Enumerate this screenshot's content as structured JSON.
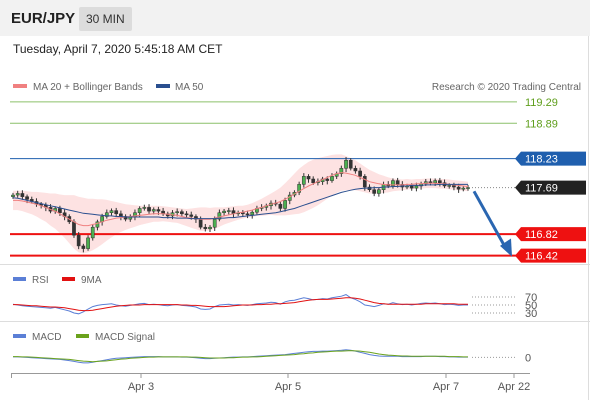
{
  "header": {
    "pair": "EUR/JPY",
    "timeframe": "30 MIN"
  },
  "datetime": "Tuesday, April 7, 2020 5:45:18 AM CET",
  "legend": {
    "ma20": "MA 20 + Bollinger Bands",
    "ma50": "MA 50",
    "credit": "Research © 2020 Trading Central",
    "rsi": "RSI",
    "rsi_ma": "9MA",
    "macd": "MACD",
    "macd_signal": "MACD Signal"
  },
  "colors": {
    "ma20": "#f08080",
    "ma50": "#2a4f8f",
    "bands_fill": "#fde2e2",
    "target_green": "#8cc06a",
    "resistance_blue": "#1f5fae",
    "support_red": "#ee1111",
    "arrow": "#2a66b1",
    "rsi": "#5b7fd6",
    "rsi_ma": "#e21111",
    "macd": "#5b7fd6",
    "macd_signal": "#6aa21c"
  },
  "chart_data": [
    {
      "type": "candlestick",
      "title": "EUR/JPY 30 MIN",
      "ylim": [
        116.3,
        119.4
      ],
      "x_ticks": [
        "Apr 3",
        "Apr 5",
        "Apr 7",
        "Apr 22"
      ],
      "levels": [
        {
          "value": 119.29,
          "label": "119.29",
          "kind": "target"
        },
        {
          "value": 118.89,
          "label": "118.89",
          "kind": "target"
        },
        {
          "value": 118.23,
          "label": "118.23",
          "kind": "resistance"
        },
        {
          "value": 117.69,
          "label": "117.69",
          "kind": "last"
        },
        {
          "value": 116.82,
          "label": "116.82",
          "kind": "support"
        },
        {
          "value": 116.42,
          "label": "116.42",
          "kind": "support"
        }
      ],
      "close": [
        117.55,
        117.58,
        117.52,
        117.47,
        117.43,
        117.38,
        117.36,
        117.32,
        117.25,
        117.3,
        117.22,
        117.15,
        117.05,
        116.8,
        116.6,
        116.55,
        116.75,
        116.95,
        117.05,
        117.15,
        117.22,
        117.26,
        117.2,
        117.15,
        117.1,
        117.14,
        117.22,
        117.3,
        117.32,
        117.25,
        117.28,
        117.25,
        117.2,
        117.16,
        117.22,
        117.24,
        117.2,
        117.18,
        117.15,
        117.1,
        116.95,
        116.92,
        116.95,
        117.1,
        117.22,
        117.25,
        117.26,
        117.2,
        117.22,
        117.2,
        117.18,
        117.23,
        117.3,
        117.32,
        117.35,
        117.4,
        117.38,
        117.3,
        117.45,
        117.55,
        117.6,
        117.75,
        117.9,
        117.85,
        117.78,
        117.8,
        117.85,
        117.82,
        117.9,
        117.95,
        118.05,
        118.2,
        118.05,
        118.0,
        117.9,
        117.7,
        117.65,
        117.58,
        117.65,
        117.75,
        117.72,
        117.82,
        117.75,
        117.7,
        117.72,
        117.68,
        117.72,
        117.76,
        117.8,
        117.78,
        117.82,
        117.78,
        117.72,
        117.73,
        117.7,
        117.66,
        117.68,
        117.69
      ],
      "ma20": [
        117.45,
        117.45,
        117.44,
        117.42,
        117.4,
        117.38,
        117.35,
        117.32,
        117.28,
        117.25,
        117.2,
        117.15,
        117.1,
        117.05,
        117.0,
        116.98,
        116.98,
        117.0,
        117.02,
        117.05,
        117.08,
        117.1,
        117.12,
        117.13,
        117.14,
        117.15,
        117.16,
        117.17,
        117.18,
        117.19,
        117.2,
        117.2,
        117.2,
        117.19,
        117.18,
        117.17,
        117.15,
        117.13,
        117.12,
        117.11,
        117.1,
        117.1,
        117.1,
        117.12,
        117.14,
        117.16,
        117.18,
        117.2,
        117.22,
        117.23,
        117.25,
        117.27,
        117.3,
        117.32,
        117.35,
        117.38,
        117.4,
        117.43,
        117.47,
        117.52,
        117.57,
        117.62,
        117.67,
        117.72,
        117.76,
        117.8,
        117.84,
        117.88,
        117.92,
        117.95,
        117.97,
        117.96,
        117.94,
        117.92,
        117.88,
        117.84,
        117.8,
        117.78,
        117.76,
        117.75,
        117.74,
        117.74,
        117.74,
        117.74,
        117.75,
        117.75,
        117.76,
        117.76,
        117.77,
        117.77,
        117.77,
        117.76,
        117.76,
        117.75,
        117.74,
        117.73,
        117.72,
        117.71
      ],
      "ma50": [
        117.5,
        117.49,
        117.47,
        117.45,
        117.43,
        117.41,
        117.39,
        117.37,
        117.35,
        117.33,
        117.31,
        117.29,
        117.27,
        117.25,
        117.23,
        117.21,
        117.2,
        117.19,
        117.18,
        117.17,
        117.16,
        117.16,
        117.15,
        117.15,
        117.14,
        117.14,
        117.14,
        117.14,
        117.14,
        117.14,
        117.14,
        117.14,
        117.13,
        117.13,
        117.13,
        117.12,
        117.12,
        117.12,
        117.11,
        117.11,
        117.11,
        117.11,
        117.11,
        117.11,
        117.12,
        117.12,
        117.13,
        117.13,
        117.14,
        117.15,
        117.16,
        117.17,
        117.18,
        117.19,
        117.2,
        117.21,
        117.22,
        117.24,
        117.26,
        117.28,
        117.3,
        117.33,
        117.36,
        117.39,
        117.42,
        117.45,
        117.48,
        117.51,
        117.54,
        117.57,
        117.6,
        117.62,
        117.64,
        117.66,
        117.67,
        117.68,
        117.68,
        117.69,
        117.69,
        117.7,
        117.7,
        117.71,
        117.71,
        117.72,
        117.72,
        117.73,
        117.73,
        117.73,
        117.74,
        117.74,
        117.74,
        117.75,
        117.75,
        117.75,
        117.75,
        117.75,
        117.75,
        117.75
      ],
      "bb_width": [
        0.18,
        0.18,
        0.19,
        0.2,
        0.21,
        0.23,
        0.25,
        0.27,
        0.3,
        0.33,
        0.36,
        0.4,
        0.45,
        0.5,
        0.52,
        0.52,
        0.5,
        0.48,
        0.45,
        0.42,
        0.38,
        0.34,
        0.3,
        0.27,
        0.24,
        0.22,
        0.2,
        0.18,
        0.17,
        0.16,
        0.15,
        0.15,
        0.14,
        0.14,
        0.14,
        0.14,
        0.15,
        0.16,
        0.18,
        0.2,
        0.22,
        0.22,
        0.21,
        0.2,
        0.18,
        0.16,
        0.15,
        0.14,
        0.13,
        0.12,
        0.12,
        0.13,
        0.14,
        0.16,
        0.18,
        0.2,
        0.23,
        0.26,
        0.3,
        0.34,
        0.38,
        0.42,
        0.44,
        0.45,
        0.45,
        0.44,
        0.42,
        0.4,
        0.38,
        0.36,
        0.34,
        0.32,
        0.3,
        0.28,
        0.26,
        0.24,
        0.22,
        0.2,
        0.18,
        0.16,
        0.14,
        0.12,
        0.11,
        0.1,
        0.1,
        0.09,
        0.09,
        0.09,
        0.09,
        0.09,
        0.09,
        0.09,
        0.09,
        0.09,
        0.09,
        0.09,
        0.09,
        0.09
      ]
    },
    {
      "type": "line",
      "title": "RSI",
      "y_ticks": [
        70,
        50,
        30
      ],
      "ylim": [
        20,
        80
      ],
      "series": [
        {
          "name": "RSI",
          "values": [
            52,
            50,
            48,
            47,
            46,
            45,
            44,
            43,
            42,
            44,
            41,
            38,
            35,
            30,
            28,
            33,
            40,
            46,
            49,
            51,
            52,
            53,
            50,
            48,
            47,
            49,
            51,
            53,
            54,
            51,
            52,
            51,
            49,
            48,
            50,
            51,
            49,
            48,
            47,
            45,
            40,
            39,
            40,
            46,
            50,
            51,
            52,
            50,
            51,
            50,
            49,
            51,
            53,
            54,
            55,
            57,
            56,
            52,
            58,
            61,
            62,
            65,
            68,
            66,
            63,
            64,
            66,
            65,
            68,
            70,
            72,
            76,
            68,
            64,
            58,
            50,
            48,
            46,
            49,
            53,
            52,
            56,
            53,
            51,
            52,
            50,
            52,
            54,
            55,
            54,
            55,
            53,
            51,
            52,
            51,
            49,
            50,
            50
          ]
        },
        {
          "name": "9MA",
          "values": [
            51,
            51,
            50,
            49,
            48,
            48,
            47,
            46,
            45,
            45,
            44,
            43,
            41,
            39,
            37,
            36,
            36,
            37,
            39,
            41,
            43,
            45,
            47,
            48,
            49,
            50,
            50,
            50,
            51,
            51,
            51,
            51,
            51,
            51,
            51,
            51,
            50,
            50,
            49,
            49,
            48,
            47,
            46,
            46,
            46,
            46,
            47,
            48,
            49,
            50,
            50,
            50,
            51,
            51,
            52,
            52,
            53,
            53,
            54,
            55,
            56,
            58,
            60,
            62,
            63,
            64,
            64,
            64,
            65,
            66,
            67,
            68,
            68,
            67,
            65,
            62,
            59,
            56,
            54,
            53,
            52,
            52,
            52,
            52,
            52,
            52,
            52,
            52,
            53,
            53,
            53,
            53,
            53,
            53,
            53,
            52,
            52,
            52
          ]
        }
      ]
    },
    {
      "type": "line",
      "title": "MACD",
      "y_ticks": [
        0
      ],
      "ylim": [
        -0.3,
        0.4
      ],
      "series": [
        {
          "name": "MACD",
          "values": [
            0.02,
            0.02,
            0.01,
            0.0,
            -0.01,
            -0.02,
            -0.03,
            -0.04,
            -0.05,
            -0.06,
            -0.07,
            -0.09,
            -0.11,
            -0.14,
            -0.17,
            -0.19,
            -0.19,
            -0.17,
            -0.14,
            -0.11,
            -0.08,
            -0.05,
            -0.03,
            -0.02,
            -0.01,
            0.0,
            0.01,
            0.02,
            0.03,
            0.03,
            0.03,
            0.03,
            0.02,
            0.02,
            0.02,
            0.02,
            0.01,
            0.01,
            0.0,
            -0.01,
            -0.03,
            -0.04,
            -0.04,
            -0.03,
            -0.02,
            -0.01,
            0.0,
            0.01,
            0.01,
            0.02,
            0.02,
            0.03,
            0.04,
            0.05,
            0.06,
            0.07,
            0.08,
            0.09,
            0.1,
            0.12,
            0.14,
            0.16,
            0.18,
            0.2,
            0.21,
            0.21,
            0.22,
            0.22,
            0.23,
            0.24,
            0.25,
            0.27,
            0.25,
            0.22,
            0.18,
            0.14,
            0.1,
            0.07,
            0.05,
            0.04,
            0.04,
            0.04,
            0.04,
            0.03,
            0.03,
            0.03,
            0.03,
            0.03,
            0.04,
            0.04,
            0.04,
            0.03,
            0.03,
            0.02,
            0.02,
            0.01,
            0.01,
            0.01
          ]
        },
        {
          "name": "MACD Signal",
          "values": [
            0.03,
            0.03,
            0.02,
            0.02,
            0.01,
            0.0,
            -0.01,
            -0.02,
            -0.03,
            -0.04,
            -0.05,
            -0.06,
            -0.07,
            -0.09,
            -0.11,
            -0.13,
            -0.14,
            -0.15,
            -0.14,
            -0.13,
            -0.12,
            -0.1,
            -0.08,
            -0.06,
            -0.05,
            -0.03,
            -0.02,
            -0.01,
            0.0,
            0.01,
            0.01,
            0.02,
            0.02,
            0.02,
            0.02,
            0.02,
            0.02,
            0.02,
            0.01,
            0.01,
            0.0,
            -0.01,
            -0.02,
            -0.02,
            -0.02,
            -0.02,
            -0.01,
            -0.01,
            0.0,
            0.01,
            0.01,
            0.02,
            0.02,
            0.03,
            0.04,
            0.05,
            0.06,
            0.07,
            0.08,
            0.09,
            0.1,
            0.12,
            0.13,
            0.15,
            0.16,
            0.18,
            0.19,
            0.2,
            0.21,
            0.22,
            0.22,
            0.23,
            0.24,
            0.23,
            0.22,
            0.2,
            0.18,
            0.15,
            0.12,
            0.1,
            0.08,
            0.07,
            0.06,
            0.05,
            0.05,
            0.04,
            0.04,
            0.04,
            0.04,
            0.04,
            0.04,
            0.04,
            0.04,
            0.03,
            0.03,
            0.03,
            0.02,
            0.02
          ]
        }
      ]
    }
  ]
}
